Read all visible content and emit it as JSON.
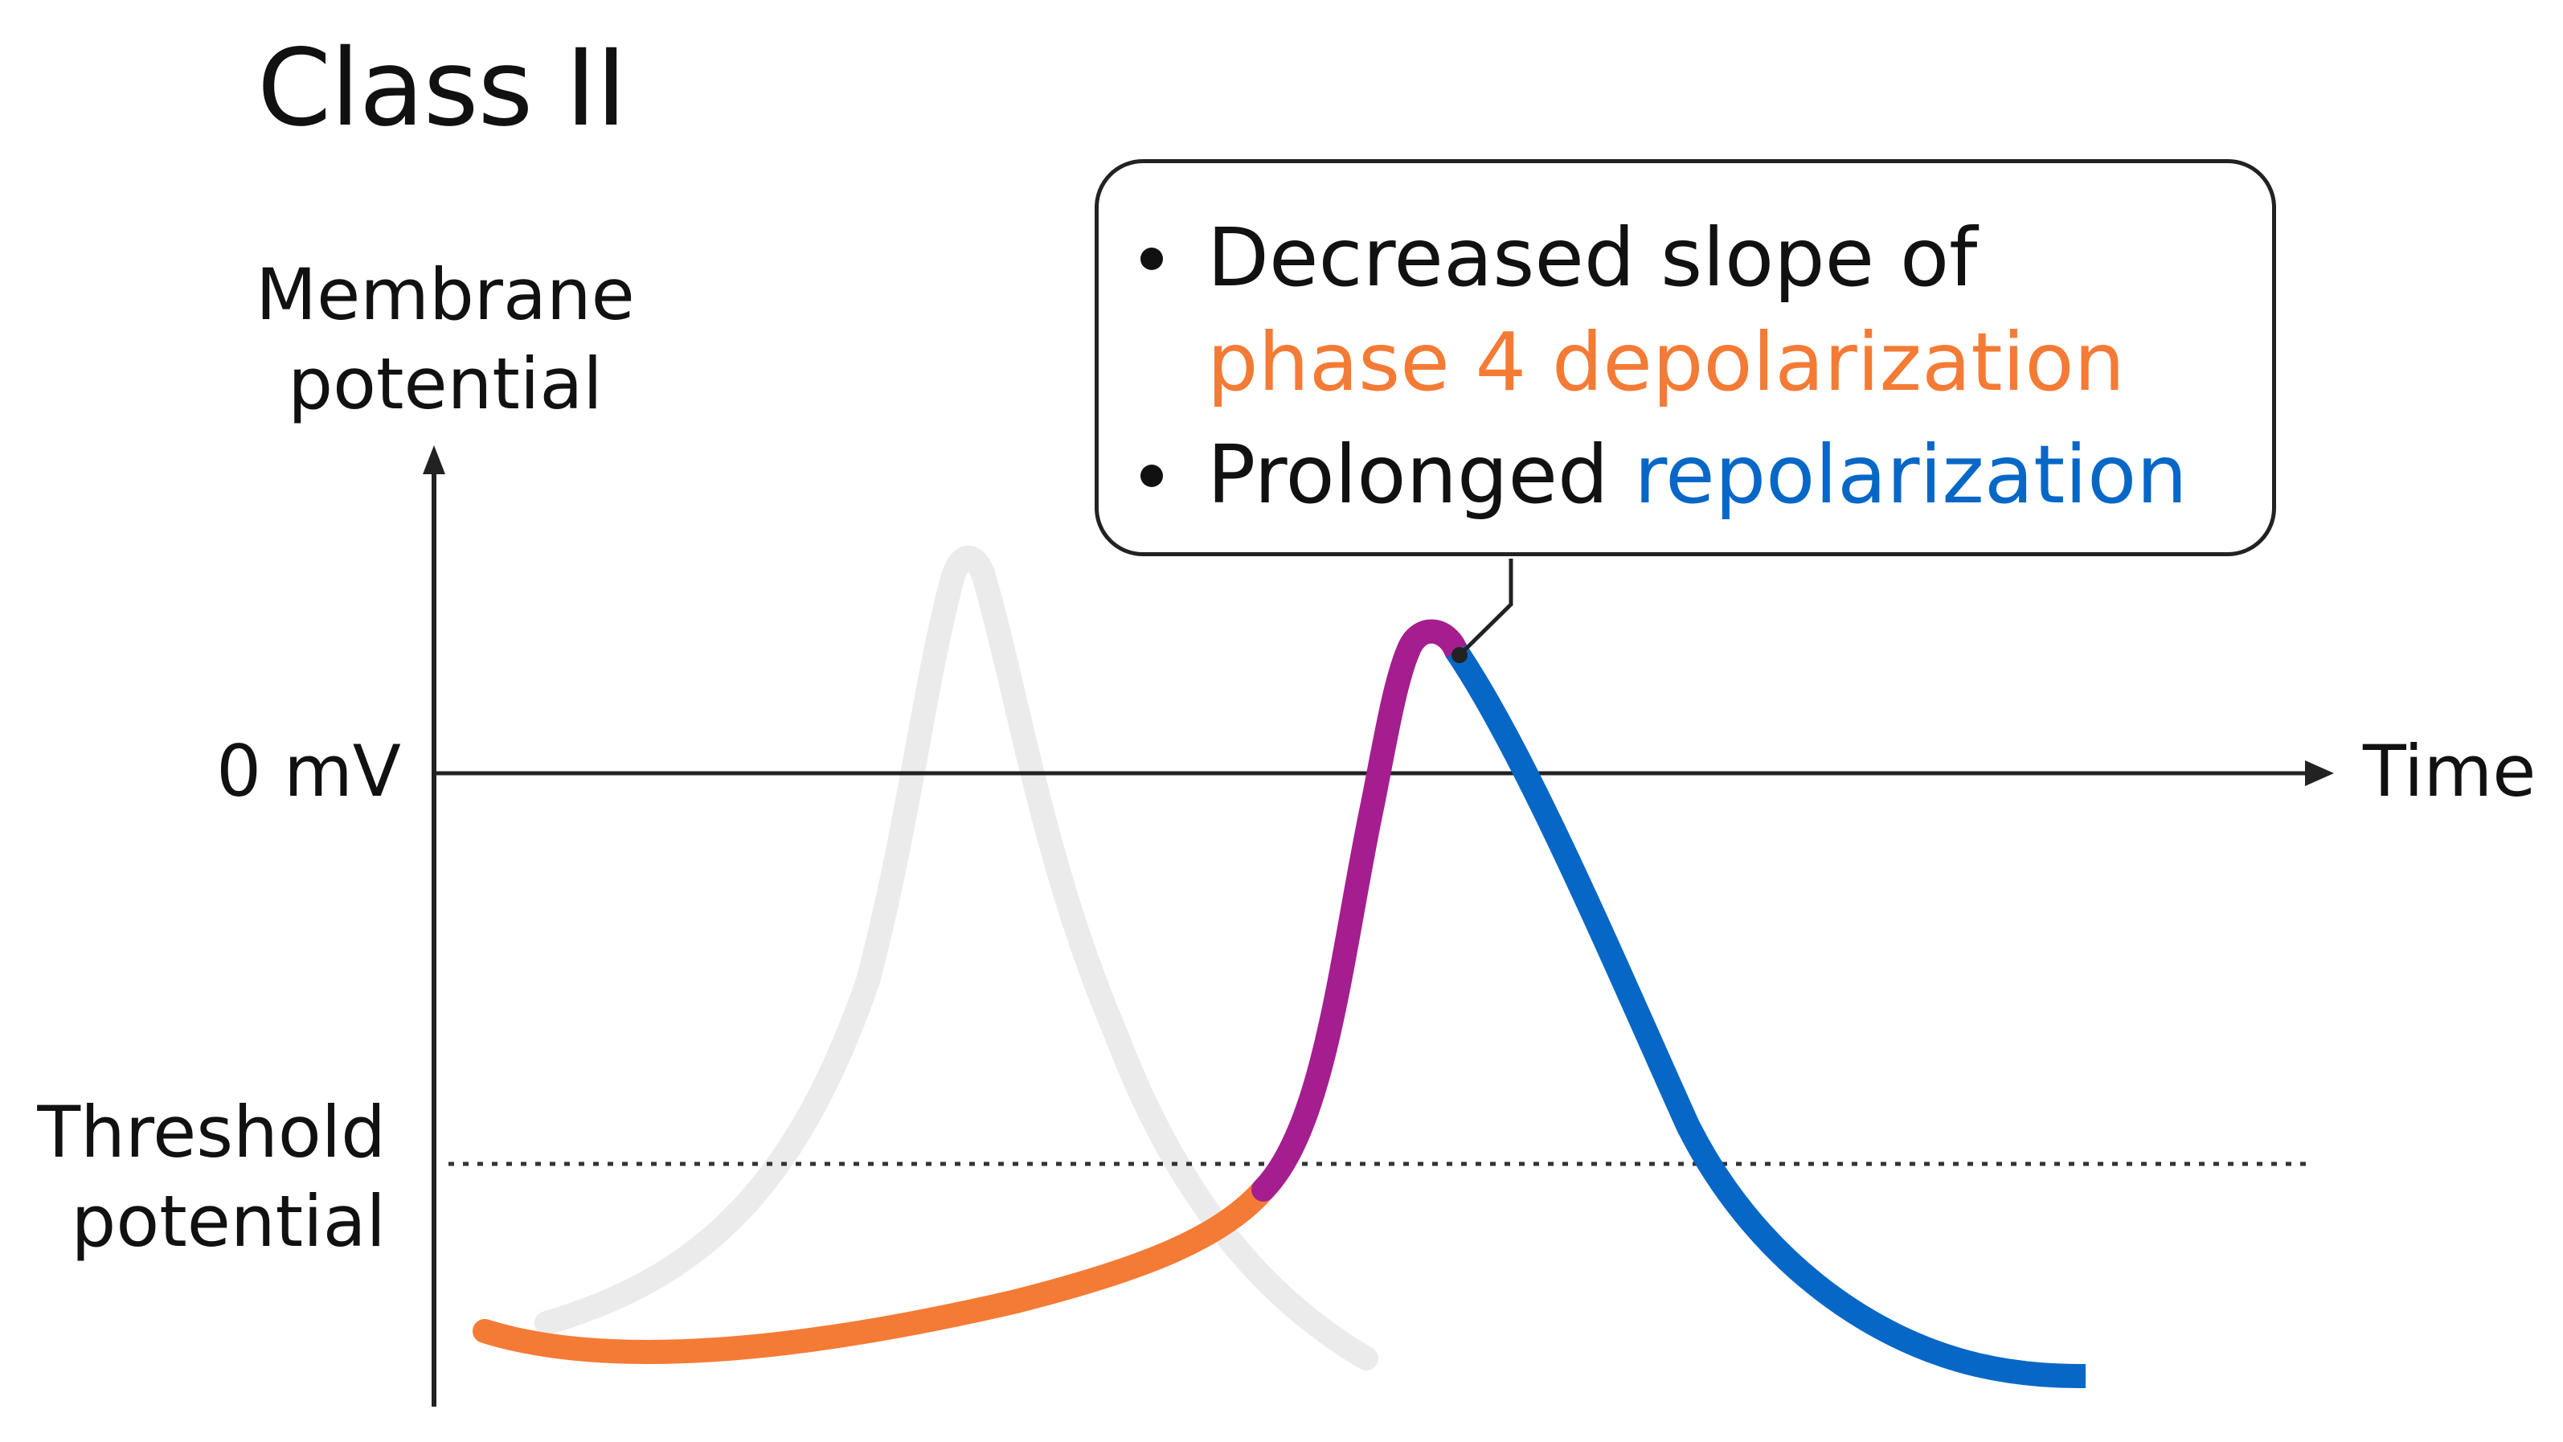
{
  "title": "Class II",
  "y_axis_label": "Membrane potential",
  "zero_label": "0 mV",
  "x_axis_label": "Time",
  "threshold_label": "Threshold potential",
  "callout": {
    "line1": "Decreased slope of",
    "line2_highlight": "phase 4 depolarization",
    "line3_prefix": "Prolonged",
    "line3_highlight": "repolarization"
  },
  "colors": {
    "axis": "#222222",
    "phase4": "#F47B35",
    "depolarization": "#A41E8F",
    "repolarization": "#0767C6",
    "baseline_curve": "#EBEBEB"
  }
}
